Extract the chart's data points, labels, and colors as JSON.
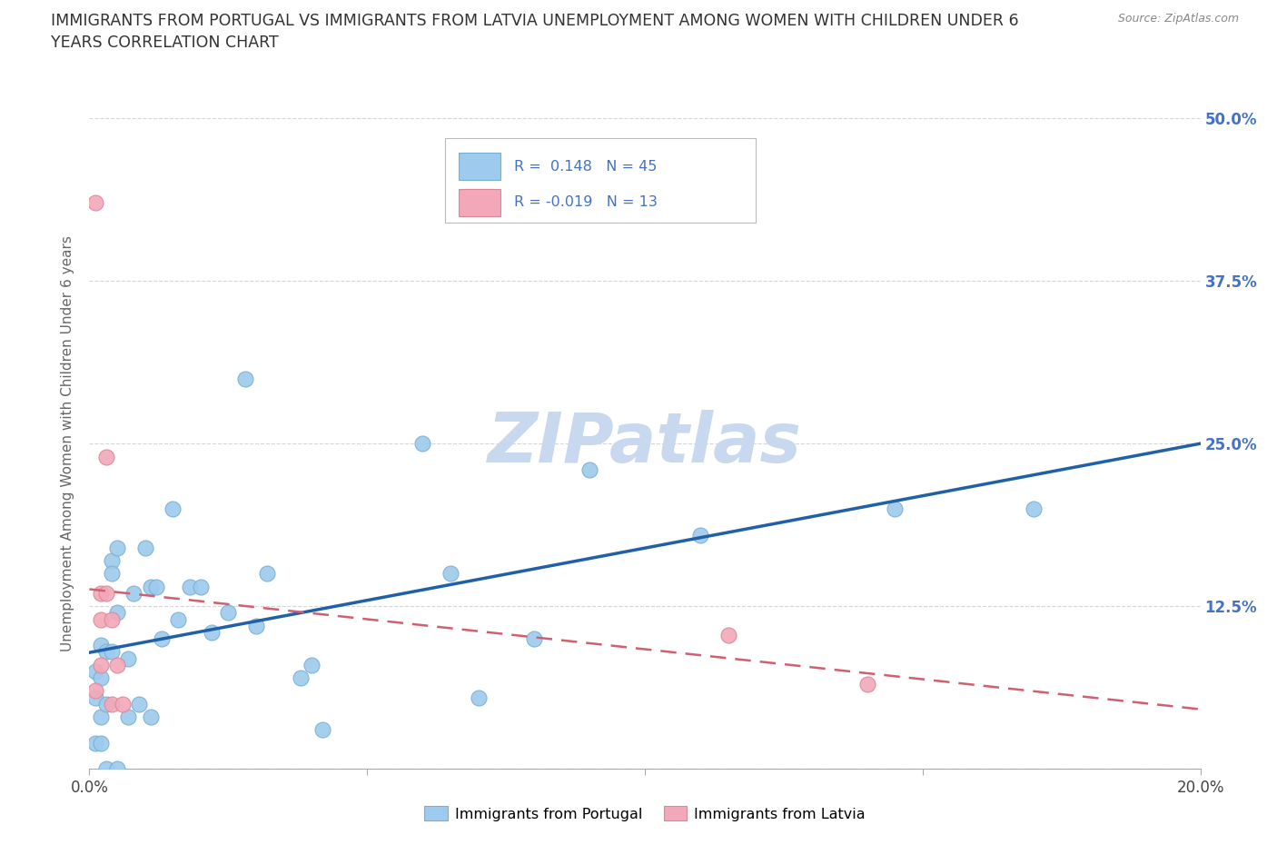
{
  "title": "IMMIGRANTS FROM PORTUGAL VS IMMIGRANTS FROM LATVIA UNEMPLOYMENT AMONG WOMEN WITH CHILDREN UNDER 6\nYEARS CORRELATION CHART",
  "source": "Source: ZipAtlas.com",
  "ylabel": "Unemployment Among Women with Children Under 6 years",
  "xlim": [
    0,
    0.2
  ],
  "ylim": [
    0,
    0.5
  ],
  "legend_label1": "Immigrants from Portugal",
  "legend_label2": "Immigrants from Latvia",
  "R1": 0.148,
  "N1": 45,
  "R2": -0.019,
  "N2": 13,
  "portugal_x": [
    0.001,
    0.001,
    0.001,
    0.002,
    0.002,
    0.002,
    0.002,
    0.003,
    0.003,
    0.003,
    0.004,
    0.004,
    0.004,
    0.005,
    0.005,
    0.005,
    0.007,
    0.007,
    0.008,
    0.009,
    0.01,
    0.011,
    0.011,
    0.012,
    0.013,
    0.015,
    0.016,
    0.018,
    0.02,
    0.022,
    0.025,
    0.028,
    0.03,
    0.032,
    0.038,
    0.04,
    0.042,
    0.06,
    0.065,
    0.07,
    0.08,
    0.09,
    0.11,
    0.145,
    0.17
  ],
  "portugal_y": [
    0.075,
    0.055,
    0.02,
    0.095,
    0.07,
    0.04,
    0.02,
    0.09,
    0.05,
    0.0,
    0.16,
    0.15,
    0.09,
    0.17,
    0.12,
    0.0,
    0.085,
    0.04,
    0.135,
    0.05,
    0.17,
    0.14,
    0.04,
    0.14,
    0.1,
    0.2,
    0.115,
    0.14,
    0.14,
    0.105,
    0.12,
    0.3,
    0.11,
    0.15,
    0.07,
    0.08,
    0.03,
    0.25,
    0.15,
    0.055,
    0.1,
    0.23,
    0.18,
    0.2,
    0.2
  ],
  "latvia_x": [
    0.001,
    0.001,
    0.002,
    0.002,
    0.002,
    0.003,
    0.003,
    0.004,
    0.004,
    0.005,
    0.006,
    0.115,
    0.14
  ],
  "latvia_y": [
    0.435,
    0.06,
    0.135,
    0.115,
    0.08,
    0.24,
    0.135,
    0.115,
    0.05,
    0.08,
    0.05,
    0.103,
    0.065
  ],
  "dot_color_portugal": "#9DCAED",
  "dot_color_latvia": "#F2A8B8",
  "dot_edge_portugal": "#7AAFD4",
  "dot_edge_latvia": "#D98898",
  "line_color_portugal": "#2060A8",
  "line_color_latvia": "#D06070",
  "background_color": "#FFFFFF",
  "grid_color": "#CCCCCC",
  "title_color": "#333333",
  "tick_color_right": "#4472C4",
  "watermark": "ZIPatlas",
  "watermark_color": "#C8D8EE"
}
